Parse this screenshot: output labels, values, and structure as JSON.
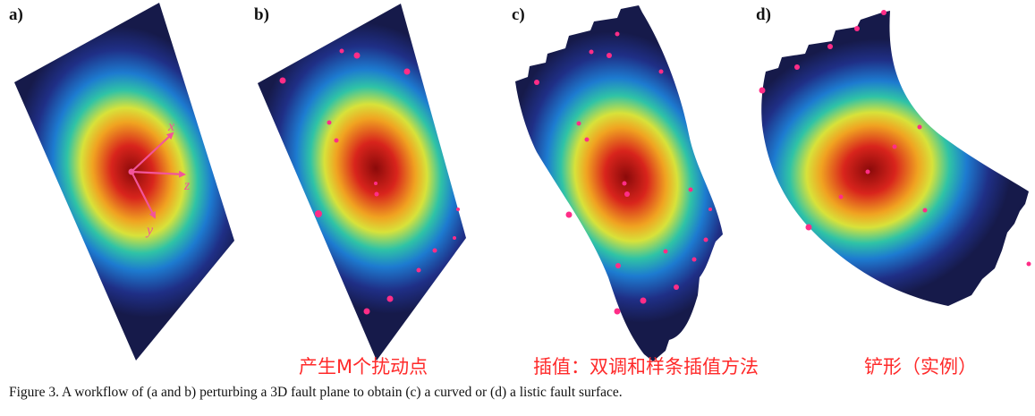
{
  "panels": [
    {
      "id": "a",
      "label": "a)"
    },
    {
      "id": "b",
      "label": "b)"
    },
    {
      "id": "c",
      "label": "c)"
    },
    {
      "id": "d",
      "label": "d)"
    }
  ],
  "axes": {
    "x": "x",
    "y": "y",
    "z": "z"
  },
  "annotations": {
    "perturb": "产生M个扰动点",
    "interpolate": "插值：双调和样条插值方法",
    "listric": "铲形（实例）"
  },
  "caption": "Figure 3.  A workflow of (a and b) perturbing a 3D fault plane to obtain (c) a curved or (d) a listic fault surface.",
  "colors": {
    "heat_center": "#8b0a0a",
    "heat_edge": "#161a4a",
    "points": "#ff2d87",
    "axes": "#f2559a",
    "annotation": "#ff2a2a"
  }
}
